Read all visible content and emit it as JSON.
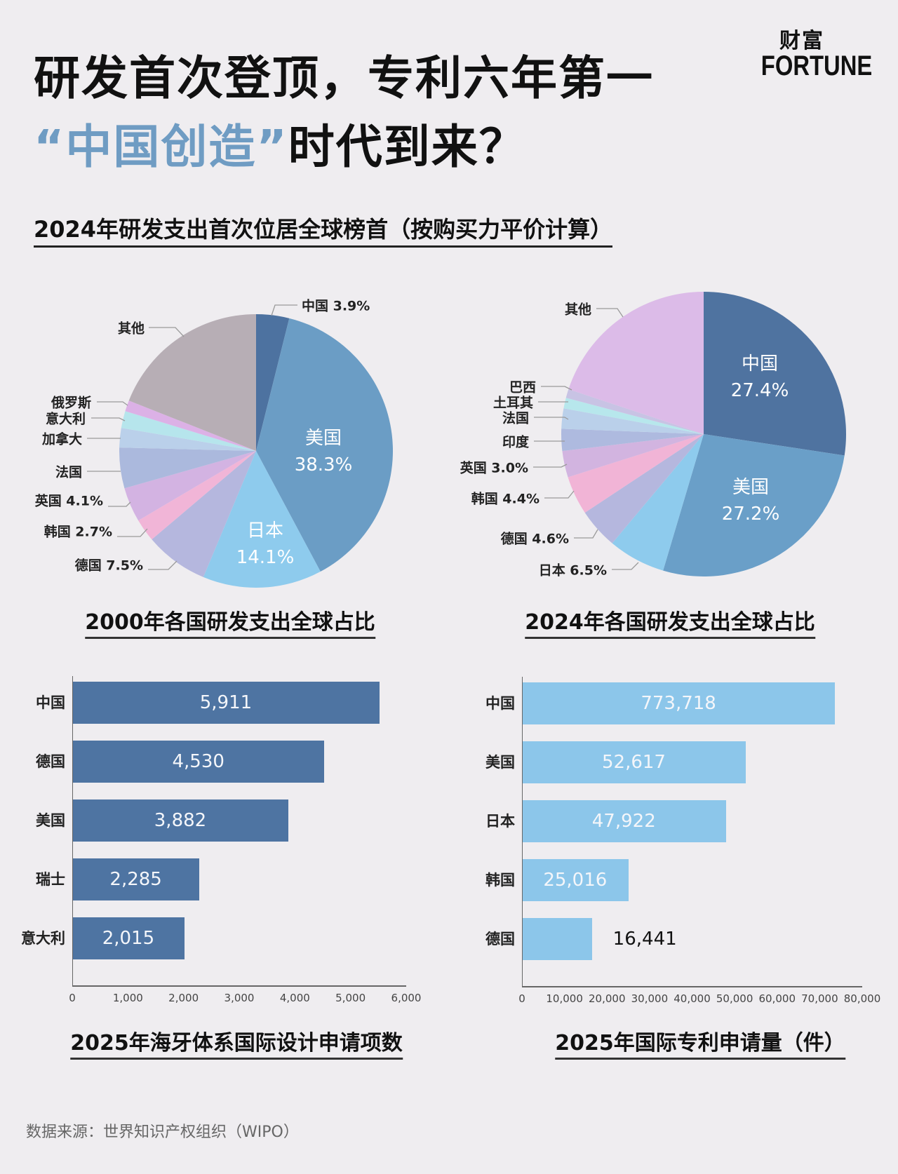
{
  "header": {
    "title_line1": "研发首次登顶，专利六年第一",
    "title_line2_highlight": "“中国创造”",
    "title_line2_rest": "时代到来？",
    "logo_cn": "财富",
    "logo_en": "FORTUNE",
    "subtitle": "2024年研发支出首次位居全球榜首（按购买力平价计算）"
  },
  "footer": {
    "source": "数据来源：世界知识产权组织（WIPO）"
  },
  "chart_data": [
    {
      "type": "pie",
      "title": "2000年各国研发支出全球占比",
      "start": "12 o'clock, clockwise",
      "slices": [
        {
          "name": "中国",
          "value": 3.9,
          "label": "中国 3.9%",
          "color": "#4d72a0"
        },
        {
          "name": "美国",
          "value": 38.3,
          "label_name": "美国",
          "label_value": "38.3%",
          "color": "#6b9dc5"
        },
        {
          "name": "日本",
          "value": 14.1,
          "label_name": "日本",
          "label_value": "14.1%",
          "color": "#8ecbed"
        },
        {
          "name": "德国",
          "value": 7.5,
          "label": "德国 7.5%",
          "color": "#b5b7de"
        },
        {
          "name": "韩国",
          "value": 2.7,
          "label": "韩国 2.7%",
          "color": "#f1b5d7"
        },
        {
          "name": "英国",
          "value": 4.1,
          "label": "英国 4.1%",
          "color": "#d3b3e2"
        },
        {
          "name": "法国",
          "value": 4.8,
          "label": "法国",
          "color": "#abb9dd"
        },
        {
          "name": "加拿大",
          "value": 2.3,
          "label": "加拿大",
          "color": "#bad0ea"
        },
        {
          "name": "意大利",
          "value": 2.0,
          "label": "意大利",
          "color": "#b6e5ec"
        },
        {
          "name": "俄罗斯",
          "value": 1.3,
          "label": "俄罗斯",
          "color": "#dcb1e6"
        },
        {
          "name": "其他",
          "value": 19.0,
          "label": "其他",
          "color": "#b7aeb5"
        }
      ]
    },
    {
      "type": "pie",
      "title": "2024年各国研发支出全球占比",
      "start": "12 o'clock, clockwise",
      "slices": [
        {
          "name": "中国",
          "value": 27.4,
          "label_name": "中国",
          "label_value": "27.4%",
          "color": "#4f73a0"
        },
        {
          "name": "美国",
          "value": 27.2,
          "label_name": "美国",
          "label_value": "27.2%",
          "color": "#6a9fc8"
        },
        {
          "name": "日本",
          "value": 6.5,
          "label": "日本 6.5%",
          "color": "#8ecbed"
        },
        {
          "name": "德国",
          "value": 4.6,
          "label": "德国 4.6%",
          "color": "#b5b7de"
        },
        {
          "name": "韩国",
          "value": 4.4,
          "label": "韩国 4.4%",
          "color": "#f1b4d6"
        },
        {
          "name": "英国",
          "value": 3.0,
          "label": "英国 3.0%",
          "color": "#d2b4e0"
        },
        {
          "name": "印度",
          "value": 2.5,
          "label": "印度",
          "color": "#aebadf"
        },
        {
          "name": "法国",
          "value": 2.3,
          "label": "法国",
          "color": "#bad0ea"
        },
        {
          "name": "土耳其",
          "value": 1.2,
          "label": "土耳其",
          "color": "#b7e7ec"
        },
        {
          "name": "巴西",
          "value": 1.0,
          "label": "巴西",
          "color": "#c8c3e4"
        },
        {
          "name": "其他",
          "value": 19.9,
          "label": "其他",
          "color": "#dcbbe8"
        }
      ]
    },
    {
      "type": "bar",
      "orientation": "horizontal",
      "title": "2025年海牙体系国际设计申请项数",
      "categories": [
        "中国",
        "德国",
        "美国",
        "瑞士",
        "意大利"
      ],
      "values": [
        5911,
        4530,
        3882,
        2285,
        2015
      ],
      "value_labels": [
        "5,911",
        "4,530",
        "3,882",
        "2,285",
        "2,015"
      ],
      "xlim": [
        0,
        6000
      ],
      "ticks": [
        "0",
        "1,000",
        "2,000",
        "3,000",
        "4,000",
        "5,000",
        "6,000"
      ],
      "color": "#4e74a2",
      "grid": false
    },
    {
      "type": "bar",
      "orientation": "horizontal",
      "title": "2025年国际专利申请量（件）",
      "categories": [
        "中国",
        "美国",
        "日本",
        "韩国",
        "德国"
      ],
      "values": [
        773718,
        52617,
        47922,
        25016,
        16441
      ],
      "value_labels": [
        "773,718",
        "52,617",
        "47,922",
        "25,016",
        "16,441"
      ],
      "xlim": [
        0,
        80000
      ],
      "ticks": [
        "0",
        "10,000",
        "20,000",
        "30,000",
        "40,000",
        "50,000",
        "60,000",
        "70,000",
        "80,000"
      ],
      "color": "#8cc6ea",
      "grid": false
    }
  ]
}
